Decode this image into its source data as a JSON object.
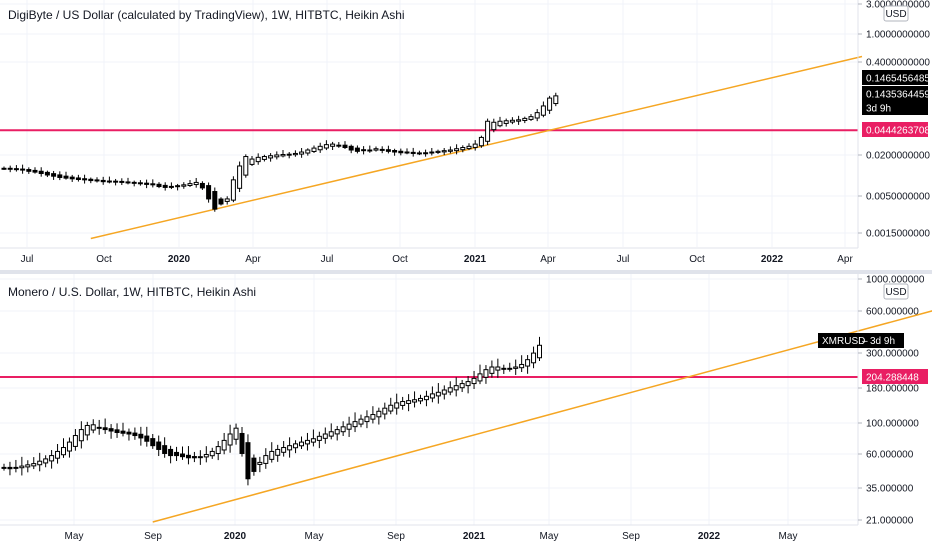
{
  "charts": [
    {
      "title": "DigiByte / US Dollar (calculated by TradingView), 1W, HITBTC, Heikin Ashi",
      "currency": "USD",
      "y_ticks": [
        "3.0000000000",
        "1.0000000000",
        "0.4000000000",
        "0.0200000000",
        "0.0050000000",
        "0.0015000000"
      ],
      "x_ticks": [
        {
          "label": "Jul",
          "bold": false
        },
        {
          "label": "Oct",
          "bold": false
        },
        {
          "label": "2020",
          "bold": true
        },
        {
          "label": "Apr",
          "bold": false
        },
        {
          "label": "Jul",
          "bold": false
        },
        {
          "label": "Oct",
          "bold": false
        },
        {
          "label": "2021",
          "bold": true
        },
        {
          "label": "Apr",
          "bold": false
        },
        {
          "label": "Jul",
          "bold": false
        },
        {
          "label": "Oct",
          "bold": false
        },
        {
          "label": "2022",
          "bold": true
        },
        {
          "label": "Apr",
          "bold": false
        }
      ],
      "price_labels": [
        {
          "text": "0.1465456485",
          "color": "#000000"
        },
        {
          "text": "0.1435364459",
          "color": "#000000"
        },
        {
          "text": "3d 9h",
          "color": "#000000"
        },
        {
          "text": "0.0444263708",
          "color": "#e91e63"
        }
      ]
    },
    {
      "title": "Monero / U.S. Dollar, 1W, HITBTC, Heikin Ashi",
      "currency": "USD",
      "y_ticks": [
        "1000.000000",
        "600.000000",
        "300.000000",
        "180.000000",
        "100.000000",
        "60.000000",
        "35.000000",
        "21.000000"
      ],
      "x_ticks": [
        {
          "label": "May",
          "bold": false
        },
        {
          "label": "Sep",
          "bold": false
        },
        {
          "label": "2020",
          "bold": true
        },
        {
          "label": "May",
          "bold": false
        },
        {
          "label": "Sep",
          "bold": false
        },
        {
          "label": "2021",
          "bold": true
        },
        {
          "label": "May",
          "bold": false
        },
        {
          "label": "Sep",
          "bold": false
        },
        {
          "label": "2022",
          "bold": true
        },
        {
          "label": "May",
          "bold": false
        }
      ],
      "symbol_label": {
        "symbol": "XMRUSD",
        "countdown": "3d 9h"
      },
      "price_labels": [
        {
          "text": "204.288448",
          "color": "#e91e63"
        }
      ]
    }
  ],
  "chart_data": [
    {
      "type": "candlestick",
      "title": "DigiByte / US Dollar (calculated by TradingView), 1W, HITBTC, Heikin Ashi",
      "yscale": "log",
      "ylim": [
        0.001,
        3.0
      ],
      "horizontal_line": {
        "value": 0.0444263708,
        "color": "#e91e63"
      },
      "trendline": {
        "color": "#f5a623",
        "from": {
          "week": 14,
          "value": 0.0012
        },
        "to": {
          "week": 90,
          "value": 0.52
        }
      },
      "last_price": 0.1435364459,
      "high_price": 0.1465456485,
      "x_start_week": 0,
      "closes": [
        0.0125,
        0.0122,
        0.012,
        0.0118,
        0.0113,
        0.011,
        0.0105,
        0.01,
        0.0096,
        0.0092,
        0.009,
        0.0088,
        0.0086,
        0.0085,
        0.0083,
        0.0082,
        0.008,
        0.0081,
        0.008,
        0.0078,
        0.0077,
        0.0076,
        0.0075,
        0.0073,
        0.0072,
        0.0068,
        0.0066,
        0.0067,
        0.007,
        0.0072,
        0.0075,
        0.0078,
        0.0065,
        0.0045,
        0.0032,
        0.0038,
        0.0045,
        0.0085,
        0.0135,
        0.0185,
        0.017,
        0.018,
        0.0185,
        0.019,
        0.0195,
        0.0198,
        0.02,
        0.0205,
        0.0215,
        0.023,
        0.0245,
        0.026,
        0.0275,
        0.028,
        0.027,
        0.025,
        0.023,
        0.022,
        0.0225,
        0.023,
        0.024,
        0.023,
        0.022,
        0.0215,
        0.021,
        0.021,
        0.0205,
        0.0208,
        0.021,
        0.0215,
        0.022,
        0.0225,
        0.023,
        0.024,
        0.025,
        0.026,
        0.028,
        0.035,
        0.06,
        0.058,
        0.06,
        0.061,
        0.062,
        0.063,
        0.066,
        0.07,
        0.08,
        0.1,
        0.13,
        0.14
      ]
    },
    {
      "type": "candlestick",
      "title": "Monero / U.S. Dollar, 1W, HITBTC, Heikin Ashi",
      "yscale": "log",
      "ylim": [
        20,
        1000
      ],
      "horizontal_line": {
        "value": 204.288448,
        "color": "#e91e63"
      },
      "trendline": {
        "color": "#f5a623",
        "from": {
          "week": 25,
          "value": 20
        },
        "to": {
          "week": 126,
          "value": 1000
        }
      },
      "x_start_week": 0,
      "closes": [
        48,
        47,
        48,
        49,
        50,
        51,
        53,
        55,
        58,
        62,
        66,
        72,
        80,
        88,
        94,
        95,
        90,
        88,
        86,
        84,
        83,
        82,
        80,
        77,
        73,
        68,
        64,
        60,
        58,
        58,
        57,
        56,
        56,
        57,
        59,
        62,
        67,
        74,
        82,
        90,
        60,
        40,
        45,
        52,
        58,
        62,
        64,
        66,
        68,
        70,
        72,
        74,
        76,
        79,
        82,
        85,
        88,
        92,
        96,
        100,
        104,
        108,
        112,
        118,
        124,
        130,
        135,
        138,
        140,
        142,
        145,
        150,
        156,
        160,
        166,
        172,
        178,
        184,
        190,
        200,
        215,
        230,
        240,
        240,
        235,
        235,
        240,
        250,
        270,
        300,
        340
      ]
    }
  ]
}
